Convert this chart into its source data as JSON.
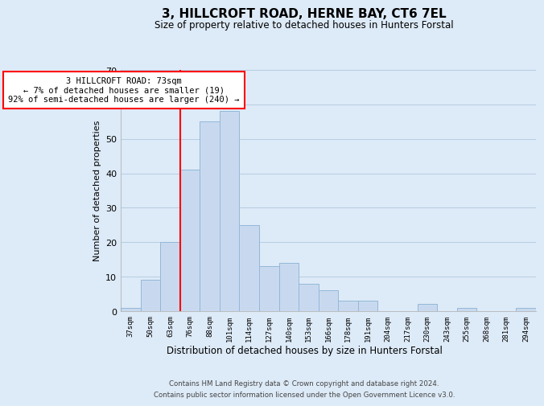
{
  "title": "3, HILLCROFT ROAD, HERNE BAY, CT6 7EL",
  "subtitle": "Size of property relative to detached houses in Hunters Forstal",
  "xlabel": "Distribution of detached houses by size in Hunters Forstal",
  "ylabel": "Number of detached properties",
  "bar_labels": [
    "37sqm",
    "50sqm",
    "63sqm",
    "76sqm",
    "88sqm",
    "101sqm",
    "114sqm",
    "127sqm",
    "140sqm",
    "153sqm",
    "166sqm",
    "178sqm",
    "191sqm",
    "204sqm",
    "217sqm",
    "230sqm",
    "243sqm",
    "255sqm",
    "268sqm",
    "281sqm",
    "294sqm"
  ],
  "bar_values": [
    1,
    9,
    20,
    41,
    55,
    58,
    25,
    13,
    14,
    8,
    6,
    3,
    3,
    0,
    0,
    2,
    0,
    1,
    0,
    0,
    1
  ],
  "bar_color": "#c8d9ef",
  "bar_edge_color": "#93b8d8",
  "vline_x_index": 3,
  "vline_color": "red",
  "ylim": [
    0,
    70
  ],
  "yticks": [
    0,
    10,
    20,
    30,
    40,
    50,
    60,
    70
  ],
  "annotation_line1": "3 HILLCROFT ROAD: 73sqm",
  "annotation_line2": "← 7% of detached houses are smaller (19)",
  "annotation_line3": "92% of semi-detached houses are larger (240) →",
  "annotation_box_edge": "red",
  "footer1": "Contains HM Land Registry data © Crown copyright and database right 2024.",
  "footer2": "Contains public sector information licensed under the Open Government Licence v3.0.",
  "bg_color": "#ddeaf7",
  "plot_bg_color": "#ddeaf7",
  "grid_color": "#b0c8e0"
}
